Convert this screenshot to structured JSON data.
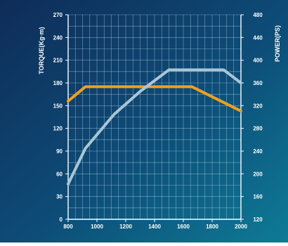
{
  "chart_data": {
    "type": "line",
    "xlabel": "",
    "y_left_label": "TORQUE(Kg·m)",
    "y_right_label": "POWER(PS)",
    "x_ticks": [
      800,
      1000,
      1200,
      1400,
      1600,
      1800,
      2000
    ],
    "y_left_ticks": [
      0,
      30,
      60,
      90,
      120,
      150,
      180,
      210,
      240,
      270
    ],
    "y_right_ticks": [
      120,
      160,
      200,
      240,
      280,
      320,
      360,
      400,
      440,
      480
    ],
    "xlim": [
      800,
      2000
    ],
    "y_left_lim": [
      0,
      270
    ],
    "y_right_lim": [
      120,
      480
    ],
    "grid": true,
    "series": [
      {
        "color": "#f0a020",
        "axis": "left",
        "x": [
          800,
          920,
          1660,
          2000
        ],
        "y": [
          156,
          175,
          175,
          143
        ]
      },
      {
        "color": "#a9c6d6",
        "axis": "right",
        "x": [
          800,
          920,
          1120,
          1300,
          1500,
          1600,
          1880,
          2000
        ],
        "y": [
          182,
          245,
          305,
          345,
          383,
          383,
          383,
          360
        ]
      }
    ]
  }
}
